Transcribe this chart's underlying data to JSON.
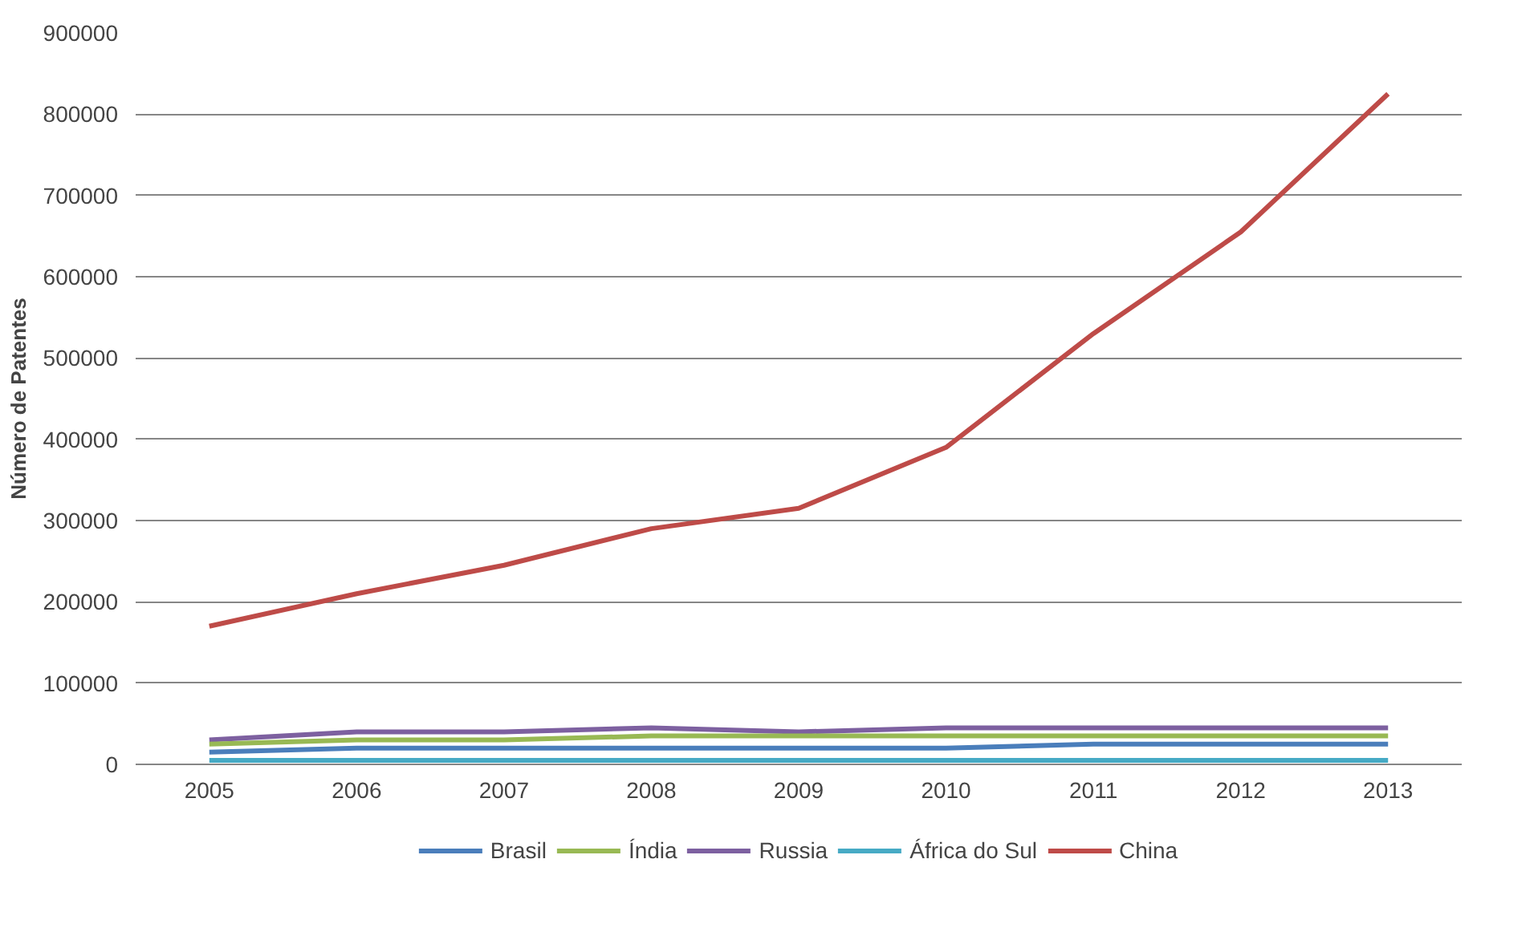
{
  "chart_data": {
    "type": "line",
    "ylabel": "Número de Patentes",
    "categories": [
      "2005",
      "2006",
      "2007",
      "2008",
      "2009",
      "2010",
      "2011",
      "2012",
      "2013"
    ],
    "ylim": [
      0,
      900000
    ],
    "yticks": [
      0,
      100000,
      200000,
      300000,
      400000,
      500000,
      600000,
      700000,
      800000,
      900000
    ],
    "grid": "y",
    "legend": "bottom",
    "line_style": "solid",
    "series": [
      {
        "name": "Brasil",
        "color": "#4a7ebb",
        "values": [
          15000,
          20000,
          20000,
          20000,
          20000,
          20000,
          25000,
          25000,
          25000
        ]
      },
      {
        "name": "Índia",
        "color": "#98b954",
        "values": [
          25000,
          30000,
          30000,
          35000,
          35000,
          35000,
          35000,
          35000,
          35000
        ]
      },
      {
        "name": "Russia",
        "color": "#7d60a0",
        "values": [
          30000,
          40000,
          40000,
          45000,
          40000,
          45000,
          45000,
          45000,
          45000
        ]
      },
      {
        "name": "África do Sul",
        "color": "#46aac5",
        "values": [
          5000,
          5000,
          5000,
          5000,
          5000,
          5000,
          5000,
          5000,
          5000
        ]
      },
      {
        "name": "China",
        "color": "#be4b48",
        "values": [
          170000,
          210000,
          245000,
          290000,
          315000,
          390000,
          530000,
          655000,
          825000
        ]
      }
    ]
  }
}
